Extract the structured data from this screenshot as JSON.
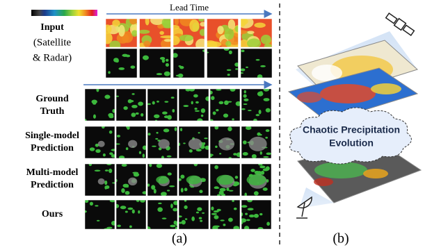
{
  "panel_a": {
    "lead_time": "Lead Time",
    "rows": [
      {
        "label": [
          "Input",
          "(Satellite",
          "& Radar)"
        ]
      },
      {
        "label": [
          "Ground",
          "Truth"
        ]
      },
      {
        "label": [
          "Single-model",
          "Prediction"
        ]
      },
      {
        "label": [
          "Multi-model",
          "Prediction"
        ]
      },
      {
        "label": [
          "Ours"
        ]
      }
    ],
    "caption": "(a)"
  },
  "panel_b": {
    "cloud_text": [
      "Chaotic Precipitation",
      "Evolution"
    ],
    "caption": "(b)"
  }
}
